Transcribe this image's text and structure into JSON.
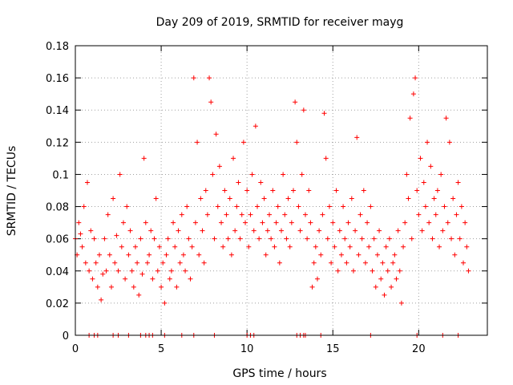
{
  "chart_data": {
    "type": "scatter",
    "title": "Day 209 of 2019, SRMTID for receiver mayg",
    "xlabel": "GPS time / hours",
    "ylabel": "SRMTID / TECUs",
    "xlim": [
      0,
      24
    ],
    "ylim": [
      0,
      0.18
    ],
    "xticks": [
      0,
      5,
      10,
      15,
      20
    ],
    "xtick_labels": [
      "0",
      "5",
      "10",
      "15",
      "20"
    ],
    "yticks": [
      0,
      0.02,
      0.04,
      0.06,
      0.08,
      0.1,
      0.12,
      0.14,
      0.16,
      0.18
    ],
    "ytick_labels": [
      "0",
      "0.02",
      "0.04",
      "0.06",
      "0.08",
      "0.1",
      "0.12",
      "0.14",
      "0.16",
      "0.18"
    ],
    "grid": true,
    "marker": "+",
    "color": "#ff0000",
    "series": [
      {
        "name": "SRMTID",
        "points": [
          [
            0.0,
            0.06
          ],
          [
            0.1,
            0.05
          ],
          [
            0.2,
            0.07
          ],
          [
            0.3,
            0.063
          ],
          [
            0.4,
            0.055
          ],
          [
            0.5,
            0.08
          ],
          [
            0.6,
            0.045
          ],
          [
            0.7,
            0.095
          ],
          [
            0.8,
            0.04
          ],
          [
            0.9,
            0.065
          ],
          [
            1.0,
            0.035
          ],
          [
            1.1,
            0.06
          ],
          [
            1.2,
            0.045
          ],
          [
            1.3,
            0.03
          ],
          [
            1.4,
            0.05
          ],
          [
            1.5,
            0.022
          ],
          [
            1.6,
            0.038
          ],
          [
            1.7,
            0.06
          ],
          [
            1.8,
            0.04
          ],
          [
            1.9,
            0.075
          ],
          [
            2.0,
            0.05
          ],
          [
            2.1,
            0.03
          ],
          [
            2.2,
            0.085
          ],
          [
            2.3,
            0.045
          ],
          [
            2.4,
            0.062
          ],
          [
            2.5,
            0.04
          ],
          [
            2.6,
            0.1
          ],
          [
            2.7,
            0.055
          ],
          [
            2.8,
            0.07
          ],
          [
            2.9,
            0.035
          ],
          [
            3.0,
            0.08
          ],
          [
            3.1,
            0.05
          ],
          [
            3.2,
            0.065
          ],
          [
            3.3,
            0.04
          ],
          [
            3.4,
            0.03
          ],
          [
            3.5,
            0.055
          ],
          [
            3.6,
            0.045
          ],
          [
            3.7,
            0.025
          ],
          [
            3.8,
            0.06
          ],
          [
            3.9,
            0.038
          ],
          [
            4.0,
            0.11
          ],
          [
            4.1,
            0.07
          ],
          [
            4.2,
            0.045
          ],
          [
            4.3,
            0.05
          ],
          [
            4.4,
            0.065
          ],
          [
            4.5,
            0.035
          ],
          [
            4.6,
            0.06
          ],
          [
            4.7,
            0.085
          ],
          [
            4.8,
            0.04
          ],
          [
            4.9,
            0.055
          ],
          [
            5.0,
            0.03
          ],
          [
            5.1,
            0.045
          ],
          [
            5.2,
            0.02
          ],
          [
            5.3,
            0.05
          ],
          [
            5.4,
            0.06
          ],
          [
            5.5,
            0.035
          ],
          [
            5.6,
            0.04
          ],
          [
            5.7,
            0.07
          ],
          [
            5.8,
            0.055
          ],
          [
            5.9,
            0.03
          ],
          [
            6.0,
            0.065
          ],
          [
            6.1,
            0.045
          ],
          [
            6.2,
            0.075
          ],
          [
            6.3,
            0.05
          ],
          [
            6.4,
            0.04
          ],
          [
            6.5,
            0.08
          ],
          [
            6.6,
            0.06
          ],
          [
            6.7,
            0.035
          ],
          [
            6.8,
            0.055
          ],
          [
            6.9,
            0.16
          ],
          [
            7.0,
            0.07
          ],
          [
            7.1,
            0.12
          ],
          [
            7.2,
            0.05
          ],
          [
            7.3,
            0.085
          ],
          [
            7.4,
            0.065
          ],
          [
            7.5,
            0.045
          ],
          [
            7.6,
            0.09
          ],
          [
            7.7,
            0.075
          ],
          [
            7.8,
            0.16
          ],
          [
            7.9,
            0.145
          ],
          [
            8.0,
            0.1
          ],
          [
            8.1,
            0.06
          ],
          [
            8.2,
            0.125
          ],
          [
            8.3,
            0.08
          ],
          [
            8.4,
            0.105
          ],
          [
            8.5,
            0.07
          ],
          [
            8.6,
            0.055
          ],
          [
            8.7,
            0.09
          ],
          [
            8.8,
            0.075
          ],
          [
            8.9,
            0.06
          ],
          [
            9.0,
            0.085
          ],
          [
            9.1,
            0.05
          ],
          [
            9.2,
            0.11
          ],
          [
            9.3,
            0.065
          ],
          [
            9.4,
            0.08
          ],
          [
            9.5,
            0.095
          ],
          [
            9.6,
            0.06
          ],
          [
            9.7,
            0.075
          ],
          [
            9.8,
            0.12
          ],
          [
            9.9,
            0.07
          ],
          [
            10.0,
            0.09
          ],
          [
            10.1,
            0.055
          ],
          [
            10.2,
            0.075
          ],
          [
            10.3,
            0.1
          ],
          [
            10.4,
            0.065
          ],
          [
            10.5,
            0.13
          ],
          [
            10.6,
            0.08
          ],
          [
            10.7,
            0.06
          ],
          [
            10.8,
            0.095
          ],
          [
            10.9,
            0.07
          ],
          [
            11.0,
            0.085
          ],
          [
            11.1,
            0.05
          ],
          [
            11.2,
            0.065
          ],
          [
            11.3,
            0.075
          ],
          [
            11.4,
            0.06
          ],
          [
            11.5,
            0.09
          ],
          [
            11.6,
            0.055
          ],
          [
            11.7,
            0.07
          ],
          [
            11.8,
            0.08
          ],
          [
            11.9,
            0.045
          ],
          [
            12.0,
            0.065
          ],
          [
            12.1,
            0.1
          ],
          [
            12.2,
            0.075
          ],
          [
            12.3,
            0.06
          ],
          [
            12.4,
            0.085
          ],
          [
            12.5,
            0.055
          ],
          [
            12.6,
            0.07
          ],
          [
            12.7,
            0.09
          ],
          [
            12.8,
            0.145
          ],
          [
            12.9,
            0.12
          ],
          [
            13.0,
            0.08
          ],
          [
            13.1,
            0.065
          ],
          [
            13.2,
            0.1
          ],
          [
            13.3,
            0.14
          ],
          [
            13.4,
            0.075
          ],
          [
            13.5,
            0.06
          ],
          [
            13.6,
            0.09
          ],
          [
            13.7,
            0.07
          ],
          [
            13.8,
            0.03
          ],
          [
            13.9,
            0.045
          ],
          [
            14.0,
            0.055
          ],
          [
            14.1,
            0.035
          ],
          [
            14.2,
            0.065
          ],
          [
            14.3,
            0.05
          ],
          [
            14.4,
            0.075
          ],
          [
            14.5,
            0.138
          ],
          [
            14.6,
            0.11
          ],
          [
            14.7,
            0.06
          ],
          [
            14.8,
            0.08
          ],
          [
            14.9,
            0.045
          ],
          [
            15.0,
            0.07
          ],
          [
            15.1,
            0.055
          ],
          [
            15.2,
            0.09
          ],
          [
            15.3,
            0.04
          ],
          [
            15.4,
            0.065
          ],
          [
            15.5,
            0.05
          ],
          [
            15.6,
            0.08
          ],
          [
            15.7,
            0.06
          ],
          [
            15.8,
            0.045
          ],
          [
            15.9,
            0.07
          ],
          [
            16.0,
            0.055
          ],
          [
            16.1,
            0.085
          ],
          [
            16.2,
            0.04
          ],
          [
            16.3,
            0.065
          ],
          [
            16.4,
            0.123
          ],
          [
            16.5,
            0.05
          ],
          [
            16.6,
            0.075
          ],
          [
            16.7,
            0.06
          ],
          [
            16.8,
            0.09
          ],
          [
            16.9,
            0.045
          ],
          [
            17.0,
            0.07
          ],
          [
            17.1,
            0.055
          ],
          [
            17.2,
            0.08
          ],
          [
            17.3,
            0.04
          ],
          [
            17.4,
            0.06
          ],
          [
            17.5,
            0.03
          ],
          [
            17.6,
            0.05
          ],
          [
            17.7,
            0.065
          ],
          [
            17.8,
            0.035
          ],
          [
            17.9,
            0.045
          ],
          [
            18.0,
            0.025
          ],
          [
            18.1,
            0.055
          ],
          [
            18.2,
            0.04
          ],
          [
            18.3,
            0.06
          ],
          [
            18.4,
            0.03
          ],
          [
            18.5,
            0.045
          ],
          [
            18.6,
            0.05
          ],
          [
            18.7,
            0.035
          ],
          [
            18.8,
            0.065
          ],
          [
            18.9,
            0.04
          ],
          [
            19.0,
            0.02
          ],
          [
            19.1,
            0.055
          ],
          [
            19.2,
            0.07
          ],
          [
            19.3,
            0.1
          ],
          [
            19.4,
            0.085
          ],
          [
            19.5,
            0.135
          ],
          [
            19.6,
            0.06
          ],
          [
            19.7,
            0.15
          ],
          [
            19.8,
            0.16
          ],
          [
            19.9,
            0.09
          ],
          [
            20.0,
            0.075
          ],
          [
            20.1,
            0.11
          ],
          [
            20.2,
            0.065
          ],
          [
            20.3,
            0.095
          ],
          [
            20.4,
            0.08
          ],
          [
            20.5,
            0.12
          ],
          [
            20.6,
            0.07
          ],
          [
            20.7,
            0.105
          ],
          [
            20.8,
            0.06
          ],
          [
            20.9,
            0.085
          ],
          [
            21.0,
            0.075
          ],
          [
            21.1,
            0.09
          ],
          [
            21.2,
            0.055
          ],
          [
            21.3,
            0.1
          ],
          [
            21.4,
            0.065
          ],
          [
            21.5,
            0.08
          ],
          [
            21.6,
            0.135
          ],
          [
            21.7,
            0.07
          ],
          [
            21.8,
            0.12
          ],
          [
            21.9,
            0.06
          ],
          [
            22.0,
            0.085
          ],
          [
            22.1,
            0.05
          ],
          [
            22.2,
            0.075
          ],
          [
            22.3,
            0.095
          ],
          [
            22.4,
            0.06
          ],
          [
            22.5,
            0.08
          ],
          [
            22.6,
            0.045
          ],
          [
            22.7,
            0.07
          ],
          [
            22.8,
            0.055
          ],
          [
            22.9,
            0.04
          ]
        ]
      }
    ],
    "zero_markers_x": [
      0.8,
      1.1,
      1.3,
      2.2,
      2.5,
      3.1,
      3.8,
      4.1,
      4.3,
      4.5,
      5.2,
      6.2,
      6.9,
      8.1,
      10.0,
      10.2,
      10.4,
      12.9,
      13.1,
      13.3,
      13.4,
      14.3,
      17.2,
      19.9,
      21.4,
      22.3
    ]
  }
}
